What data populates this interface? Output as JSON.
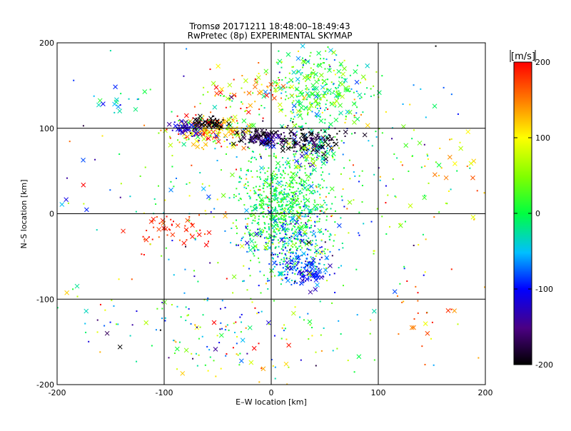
{
  "chart_data": {
    "type": "scatter",
    "title": "Tromsø 20171211 18:48:00–18:49:43",
    "subtitle": "RwPretec (8p) EXPERIMENTAL SKYMAP",
    "xlabel": "E–W location [km]",
    "ylabel": "N–S location [km]",
    "xlim": [
      -200,
      200
    ],
    "ylim": [
      -200,
      200
    ],
    "xticks": [
      -200,
      -100,
      0,
      100,
      200
    ],
    "yticks": [
      -200,
      -100,
      0,
      100,
      200
    ],
    "grid": true,
    "colorbar": {
      "label": "[m/s]",
      "min": -200,
      "max": 200,
      "ticks": [
        200,
        100,
        0,
        -100,
        -200
      ],
      "colormap": "rainbow (black-purple-blue-cyan-green-yellow-red)"
    },
    "marker_types": [
      "small dot",
      "cross"
    ],
    "clusters": [
      {
        "x": 10,
        "y": 15,
        "sx": 20,
        "sy": 30,
        "n": 700,
        "v": 5,
        "sv": 25,
        "cross": 0.08
      },
      {
        "x": 20,
        "y": -35,
        "sx": 20,
        "sy": 22,
        "n": 300,
        "v": -40,
        "sv": 60,
        "cross": 0.1
      },
      {
        "x": 28,
        "y": -60,
        "sx": 12,
        "sy": 10,
        "n": 90,
        "v": -75,
        "sv": 30,
        "cross": 0.2
      },
      {
        "x": 38,
        "y": -72,
        "sx": 8,
        "sy": 5,
        "n": 50,
        "v": -105,
        "sv": 15,
        "cross": 0.45
      },
      {
        "x": 45,
        "y": 150,
        "sx": 22,
        "sy": 22,
        "n": 260,
        "v": 10,
        "sv": 45,
        "cross": 0.35
      },
      {
        "x": 35,
        "y": 118,
        "sx": 15,
        "sy": 12,
        "n": 60,
        "v": 5,
        "sv": 30,
        "cross": 0.35
      },
      {
        "x": 40,
        "y": 75,
        "sx": 10,
        "sy": 10,
        "n": 100,
        "v": -20,
        "sv": 60,
        "cross": 0.4
      },
      {
        "x": 35,
        "y": 80,
        "sx": 12,
        "sy": 6,
        "n": 50,
        "v": -190,
        "sv": 15,
        "cross": 0.4
      },
      {
        "x": -55,
        "y": 98,
        "sx": 22,
        "sy": 10,
        "n": 200,
        "v": 120,
        "sv": 80,
        "cross": 0.35
      },
      {
        "x": -58,
        "y": 105,
        "sx": 8,
        "sy": 4,
        "n": 60,
        "v": -200,
        "sv": 10,
        "cross": 0.5
      },
      {
        "x": -80,
        "y": 100,
        "sx": 8,
        "sy": 4,
        "n": 40,
        "v": -120,
        "sv": 20,
        "cross": 0.5
      },
      {
        "x": -5,
        "y": 85,
        "sx": 10,
        "sy": 4,
        "n": 60,
        "v": -150,
        "sv": 40,
        "cross": 0.5
      },
      {
        "x": 10,
        "y": 92,
        "sx": 30,
        "sy": 5,
        "n": 120,
        "v": -190,
        "sv": 20,
        "cross": 0.3
      },
      {
        "x": -20,
        "y": 140,
        "sx": 22,
        "sy": 15,
        "n": 80,
        "v": 110,
        "sv": 90,
        "cross": 0.3
      },
      {
        "x": -150,
        "y": 135,
        "sx": 15,
        "sy": 10,
        "n": 20,
        "v": -40,
        "sv": 40,
        "cross": 0.5
      },
      {
        "x": -95,
        "y": -18,
        "sx": 18,
        "sy": 8,
        "n": 50,
        "v": 185,
        "sv": 15,
        "cross": 0.35
      },
      {
        "x": 60,
        "y": 35,
        "sx": 55,
        "sy": 55,
        "n": 120,
        "v": 0,
        "sv": 80,
        "cross": 0.08
      },
      {
        "x": -60,
        "y": 20,
        "sx": 40,
        "sy": 50,
        "n": 90,
        "v": 20,
        "sv": 90,
        "cross": 0.08
      },
      {
        "x": 0,
        "y": -130,
        "sx": 70,
        "sy": 40,
        "n": 110,
        "v": 30,
        "sv": 100,
        "cross": 0.12
      },
      {
        "x": -60,
        "y": -150,
        "sx": 40,
        "sy": 30,
        "n": 60,
        "v": 0,
        "sv": 100,
        "cross": 0.2
      },
      {
        "x": 150,
        "y": -120,
        "sx": 25,
        "sy": 40,
        "n": 25,
        "v": 160,
        "sv": 30,
        "cross": 0.3
      },
      {
        "x": 175,
        "y": 45,
        "sx": 20,
        "sy": 25,
        "n": 20,
        "v": 130,
        "sv": 40,
        "cross": 0.5
      },
      {
        "x": 150,
        "y": 80,
        "sx": 40,
        "sy": 20,
        "n": 25,
        "v": 60,
        "sv": 80,
        "cross": 0.1
      },
      {
        "x": -170,
        "y": -60,
        "sx": 30,
        "sy": 70,
        "n": 12,
        "v": -60,
        "sv": 100,
        "cross": 0.4
      },
      {
        "x": 0,
        "y": 0,
        "sx": 120,
        "sy": 110,
        "n": 140,
        "v": 10,
        "sv": 110,
        "cross": 0.15
      }
    ]
  }
}
